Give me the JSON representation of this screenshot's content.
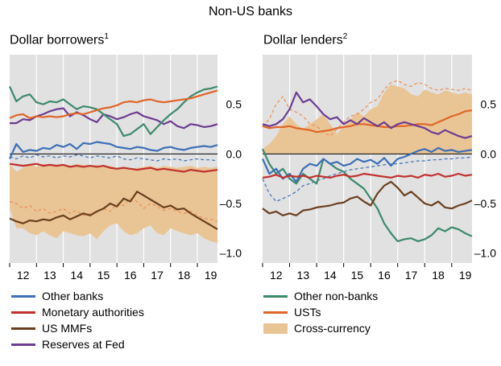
{
  "figure_title": "Non-US banks",
  "colors": {
    "panel_bg": "#e1e1e1",
    "blue": "#3d6fb6",
    "red": "#c0302e",
    "brown": "#6b3f1f",
    "purple": "#6c3c92",
    "green": "#3d8a6b",
    "orange": "#e06528",
    "area": "#e9c596",
    "area_edge": "#ee8c54"
  },
  "legend": {
    "left": [
      {
        "label": "Other banks",
        "color": "#3d6fb6",
        "kind": "line"
      },
      {
        "label": "Monetary authorities",
        "color": "#c0302e",
        "kind": "line"
      },
      {
        "label": "US MMFs",
        "color": "#6b3f1f",
        "kind": "line"
      },
      {
        "label": "Reserves at Fed",
        "color": "#6c3c92",
        "kind": "line"
      }
    ],
    "right": [
      {
        "label": "Other non-banks",
        "color": "#3d8a6b",
        "kind": "line"
      },
      {
        "label": "USTs",
        "color": "#e06528",
        "kind": "line"
      },
      {
        "label": "Cross-currency",
        "color": "#e9c596",
        "kind": "area"
      }
    ]
  },
  "chart_data": [
    {
      "type": "line",
      "title": "Dollar borrowers",
      "title_sup": "1",
      "x_ticks": [
        "12",
        "13",
        "14",
        "15",
        "16",
        "17",
        "18",
        "19"
      ],
      "x_range": [
        2012.0,
        2019.75
      ],
      "y_ticks": [
        "0.5",
        "0.0",
        "–0.5",
        "–1.0"
      ],
      "y_tick_values": [
        0.5,
        0.0,
        -0.5,
        -1.0
      ],
      "ylim": [
        -1.1,
        1.0
      ],
      "grid": false,
      "quarters_start": 2012.0,
      "area": {
        "name": "Cross-currency",
        "upper": [
          -0.1,
          -0.18,
          -0.14,
          -0.1,
          -0.13,
          -0.1,
          -0.12,
          -0.11,
          -0.1,
          -0.12,
          -0.1,
          -0.11,
          -0.12,
          -0.11,
          -0.13,
          -0.12,
          -0.14,
          -0.13,
          -0.15,
          -0.14,
          -0.13,
          -0.12,
          -0.14,
          -0.12,
          -0.13,
          -0.14,
          -0.13,
          -0.12,
          -0.14,
          -0.13,
          -0.14,
          -0.13
        ],
        "lower": [
          -0.55,
          -0.75,
          -0.75,
          -0.8,
          -0.82,
          -0.78,
          -0.82,
          -0.85,
          -0.78,
          -0.8,
          -0.82,
          -0.83,
          -0.8,
          -0.86,
          -0.78,
          -0.72,
          -0.7,
          -0.78,
          -0.82,
          -0.8,
          -0.75,
          -0.72,
          -0.8,
          -0.82,
          -0.75,
          -0.78,
          -0.8,
          -0.82,
          -0.8,
          -0.85,
          -0.88,
          -0.9
        ]
      },
      "series": [
        {
          "name": "Other banks",
          "color": "#3d6fb6",
          "dash": false,
          "values": [
            -0.05,
            0.1,
            0.02,
            0.04,
            0.03,
            0.06,
            0.05,
            0.09,
            0.07,
            0.1,
            0.05,
            0.11,
            0.1,
            0.12,
            0.11,
            0.1,
            0.07,
            0.06,
            0.05,
            0.07,
            0.06,
            0.04,
            0.03,
            0.06,
            0.07,
            0.05,
            0.04,
            0.06,
            0.07,
            0.08,
            0.07,
            0.09
          ]
        },
        {
          "name": "Monetary authorities",
          "color": "#c0302e",
          "dash": false,
          "values": [
            -0.1,
            -0.11,
            -0.12,
            -0.11,
            -0.1,
            -0.12,
            -0.11,
            -0.12,
            -0.11,
            -0.13,
            -0.12,
            -0.13,
            -0.12,
            -0.13,
            -0.12,
            -0.14,
            -0.15,
            -0.14,
            -0.15,
            -0.16,
            -0.15,
            -0.14,
            -0.16,
            -0.15,
            -0.16,
            -0.17,
            -0.18,
            -0.16,
            -0.17,
            -0.18,
            -0.17,
            -0.16
          ]
        },
        {
          "name": "US MMFs",
          "color": "#6b3f1f",
          "dash": false,
          "values": [
            -0.65,
            -0.68,
            -0.7,
            -0.67,
            -0.68,
            -0.66,
            -0.67,
            -0.64,
            -0.62,
            -0.66,
            -0.63,
            -0.6,
            -0.62,
            -0.58,
            -0.55,
            -0.5,
            -0.53,
            -0.45,
            -0.48,
            -0.38,
            -0.42,
            -0.46,
            -0.5,
            -0.54,
            -0.52,
            -0.56,
            -0.55,
            -0.6,
            -0.64,
            -0.68,
            -0.72,
            -0.76
          ]
        },
        {
          "name": "Reserves at Fed",
          "color": "#6c3c92",
          "dash": false,
          "values": [
            0.31,
            0.31,
            0.35,
            0.34,
            0.38,
            0.4,
            0.43,
            0.45,
            0.46,
            0.38,
            0.42,
            0.39,
            0.35,
            0.32,
            0.4,
            0.38,
            0.35,
            0.37,
            0.4,
            0.42,
            0.38,
            0.36,
            0.34,
            0.3,
            0.33,
            0.28,
            0.26,
            0.3,
            0.29,
            0.27,
            0.28,
            0.3
          ]
        },
        {
          "name": "",
          "color": "#3d8a6b",
          "dash": false,
          "values": [
            0.68,
            0.53,
            0.58,
            0.6,
            0.52,
            0.5,
            0.53,
            0.52,
            0.55,
            0.5,
            0.45,
            0.48,
            0.47,
            0.45,
            0.4,
            0.35,
            0.3,
            0.18,
            0.2,
            0.25,
            0.3,
            0.2,
            0.27,
            0.34,
            0.4,
            0.45,
            0.52,
            0.58,
            0.62,
            0.65,
            0.66,
            0.68
          ]
        },
        {
          "name": "",
          "color": "#e06528",
          "dash": false,
          "values": [
            0.36,
            0.39,
            0.4,
            0.36,
            0.38,
            0.37,
            0.38,
            0.37,
            0.38,
            0.4,
            0.41,
            0.4,
            0.42,
            0.44,
            0.46,
            0.47,
            0.49,
            0.52,
            0.53,
            0.52,
            0.54,
            0.55,
            0.53,
            0.52,
            0.53,
            0.54,
            0.55,
            0.56,
            0.58,
            0.6,
            0.62,
            0.64
          ]
        },
        {
          "name": "",
          "color": "#3d6fb6",
          "dash": true,
          "values": [
            -0.03,
            -0.05,
            -0.02,
            -0.04,
            -0.01,
            -0.03,
            -0.02,
            -0.04,
            -0.02,
            -0.03,
            -0.01,
            -0.02,
            -0.04,
            -0.02,
            -0.03,
            -0.04,
            -0.02,
            -0.05,
            -0.06,
            -0.04,
            -0.05,
            -0.06,
            -0.07,
            -0.05,
            -0.06,
            -0.05,
            -0.07,
            -0.06,
            -0.05,
            -0.06,
            -0.06,
            -0.07
          ]
        },
        {
          "name": "",
          "color": "#ee8c54",
          "dash": true,
          "values": [
            -0.48,
            -0.5,
            -0.55,
            -0.52,
            -0.58,
            -0.55,
            -0.6,
            -0.58,
            -0.55,
            -0.6,
            -0.57,
            -0.62,
            -0.6,
            -0.58,
            -0.55,
            -0.58,
            -0.5,
            -0.52,
            -0.45,
            -0.48,
            -0.55,
            -0.5,
            -0.53,
            -0.57,
            -0.55,
            -0.58,
            -0.6,
            -0.58,
            -0.62,
            -0.65,
            -0.66,
            -0.68
          ]
        }
      ]
    },
    {
      "type": "line",
      "title": "Dollar lenders",
      "title_sup": "2",
      "x_ticks": [
        "12",
        "13",
        "14",
        "15",
        "16",
        "17",
        "18",
        "19"
      ],
      "x_range": [
        2012.0,
        2019.75
      ],
      "y_ticks": [
        "0.5",
        "0.0",
        "–0.5",
        "–1.0"
      ],
      "y_tick_values": [
        0.5,
        0.0,
        -0.5,
        -1.0
      ],
      "ylim": [
        -1.1,
        1.0
      ],
      "grid": false,
      "quarters_start": 2012.0,
      "area": {
        "name": "Cross-currency",
        "upper": [
          0.05,
          0.1,
          0.18,
          0.3,
          0.38,
          0.3,
          0.25,
          0.3,
          0.35,
          0.4,
          0.3,
          0.2,
          0.28,
          0.35,
          0.42,
          0.38,
          0.45,
          0.48,
          0.62,
          0.7,
          0.68,
          0.66,
          0.6,
          0.58,
          0.65,
          0.62,
          0.6,
          0.64,
          0.62,
          0.6,
          0.62,
          0.6
        ],
        "lower": [
          0.0,
          0.0,
          0.0,
          0.0,
          0.0,
          0.0,
          0.0,
          0.0,
          0.0,
          0.0,
          0.0,
          0.0,
          0.0,
          0.0,
          0.0,
          0.0,
          0.0,
          0.0,
          0.0,
          0.0,
          0.0,
          0.0,
          0.0,
          0.0,
          0.0,
          0.0,
          0.0,
          0.0,
          0.0,
          0.0,
          0.0,
          0.0
        ]
      },
      "series": [
        {
          "name": "Other non-banks",
          "color": "#3d8a6b",
          "dash": false,
          "values": [
            0.05,
            -0.1,
            -0.2,
            -0.15,
            -0.25,
            -0.3,
            -0.2,
            -0.25,
            -0.3,
            -0.05,
            -0.1,
            -0.15,
            -0.18,
            -0.25,
            -0.3,
            -0.35,
            -0.45,
            -0.55,
            -0.7,
            -0.8,
            -0.88,
            -0.86,
            -0.85,
            -0.88,
            -0.86,
            -0.82,
            -0.75,
            -0.78,
            -0.74,
            -0.76,
            -0.8,
            -0.83
          ]
        },
        {
          "name": "USTs",
          "color": "#e06528",
          "dash": false,
          "values": [
            0.28,
            0.26,
            0.27,
            0.27,
            0.28,
            0.26,
            0.25,
            0.24,
            0.22,
            0.23,
            0.24,
            0.26,
            0.27,
            0.28,
            0.3,
            0.3,
            0.29,
            0.28,
            0.27,
            0.27,
            0.28,
            0.28,
            0.29,
            0.3,
            0.3,
            0.29,
            0.32,
            0.35,
            0.38,
            0.4,
            0.43,
            0.44
          ]
        },
        {
          "name": "",
          "color": "#3d6fb6",
          "dash": false,
          "values": [
            -0.05,
            -0.2,
            -0.15,
            -0.25,
            -0.2,
            -0.28,
            -0.15,
            -0.1,
            -0.12,
            -0.05,
            -0.1,
            -0.08,
            -0.12,
            -0.1,
            -0.05,
            -0.08,
            -0.06,
            -0.1,
            -0.04,
            -0.12,
            -0.05,
            -0.03,
            0.0,
            0.03,
            0.05,
            0.02,
            0.06,
            0.03,
            0.04,
            0.02,
            0.03,
            0.04
          ]
        },
        {
          "name": "",
          "color": "#c0302e",
          "dash": false,
          "values": [
            -0.24,
            -0.23,
            -0.21,
            -0.24,
            -0.22,
            -0.23,
            -0.22,
            -0.24,
            -0.22,
            -0.23,
            -0.24,
            -0.22,
            -0.21,
            -0.23,
            -0.22,
            -0.2,
            -0.21,
            -0.22,
            -0.23,
            -0.24,
            -0.22,
            -0.23,
            -0.22,
            -0.24,
            -0.21,
            -0.22,
            -0.2,
            -0.23,
            -0.22,
            -0.2,
            -0.22,
            -0.21
          ]
        },
        {
          "name": "",
          "color": "#6b3f1f",
          "dash": false,
          "values": [
            -0.55,
            -0.6,
            -0.58,
            -0.62,
            -0.6,
            -0.62,
            -0.57,
            -0.56,
            -0.54,
            -0.53,
            -0.52,
            -0.5,
            -0.49,
            -0.45,
            -0.43,
            -0.48,
            -0.52,
            -0.4,
            -0.32,
            -0.28,
            -0.34,
            -0.42,
            -0.38,
            -0.44,
            -0.5,
            -0.52,
            -0.48,
            -0.54,
            -0.55,
            -0.52,
            -0.5,
            -0.47
          ]
        },
        {
          "name": "",
          "color": "#6c3c92",
          "dash": false,
          "values": [
            0.3,
            0.28,
            0.3,
            0.35,
            0.45,
            0.62,
            0.52,
            0.55,
            0.48,
            0.4,
            0.35,
            0.37,
            0.3,
            0.34,
            0.3,
            0.36,
            0.32,
            0.28,
            0.32,
            0.26,
            0.3,
            0.32,
            0.3,
            0.28,
            0.26,
            0.22,
            0.2,
            0.24,
            0.21,
            0.18,
            0.16,
            0.18
          ]
        },
        {
          "name": "",
          "color": "#3d6fb6",
          "dash": true,
          "values": [
            -0.25,
            -0.4,
            -0.48,
            -0.45,
            -0.42,
            -0.38,
            -0.32,
            -0.3,
            -0.27,
            -0.25,
            -0.22,
            -0.2,
            -0.18,
            -0.16,
            -0.15,
            -0.14,
            -0.13,
            -0.12,
            -0.11,
            -0.1,
            -0.1,
            -0.09,
            -0.08,
            -0.07,
            -0.07,
            -0.06,
            -0.06,
            -0.05,
            -0.05,
            -0.04,
            -0.04,
            -0.03
          ]
        },
        {
          "name": "",
          "color": "#ee8c54",
          "dash": true,
          "values": [
            0.28,
            0.35,
            0.5,
            0.58,
            0.45,
            0.42,
            0.38,
            0.3,
            0.28,
            0.22,
            0.18,
            0.25,
            0.32,
            0.38,
            0.4,
            0.45,
            0.52,
            0.55,
            0.65,
            0.72,
            0.74,
            0.7,
            0.68,
            0.72,
            0.7,
            0.66,
            0.64,
            0.66,
            0.65,
            0.64,
            0.66,
            0.64
          ]
        }
      ]
    }
  ]
}
